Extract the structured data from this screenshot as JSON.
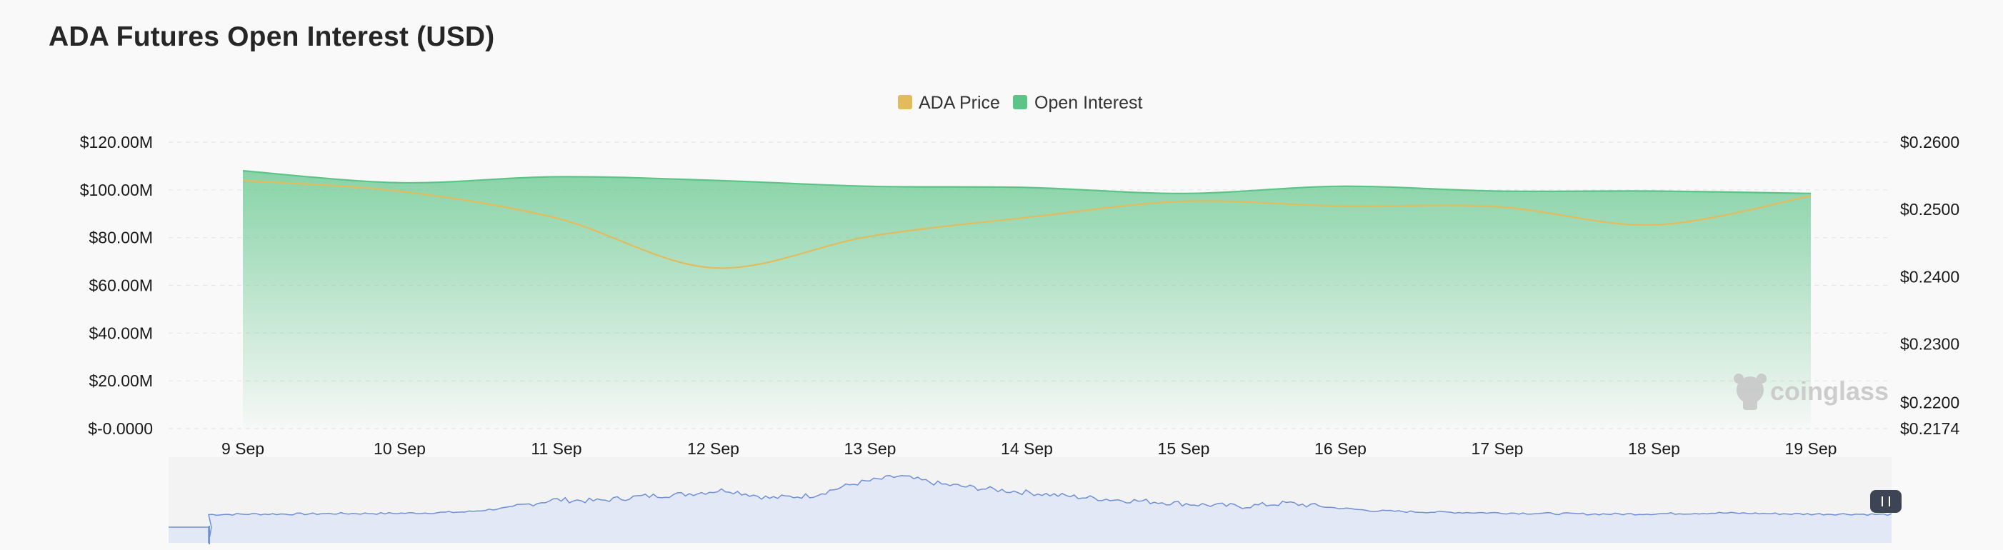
{
  "title": "ADA Futures Open Interest (USD)",
  "watermark": "coinglass",
  "colors": {
    "price": "#e2bc5c",
    "open_interest": "#5cc487",
    "navigator_fill": "#e3e8f7",
    "navigator_line": "#6f8fd6"
  },
  "chart_data": {
    "type": "area",
    "title": "ADA Futures Open Interest (USD)",
    "legend_position": "top-center",
    "grid": true,
    "x": [
      "9 Sep",
      "10 Sep",
      "11 Sep",
      "12 Sep",
      "13 Sep",
      "14 Sep",
      "15 Sep",
      "16 Sep",
      "17 Sep",
      "18 Sep",
      "19 Sep"
    ],
    "y_left": {
      "tick_labels": [
        "$-0.0000",
        "$20.00M",
        "$40.00M",
        "$60.00M",
        "$80.00M",
        "$100.00M",
        "$120.00M"
      ],
      "tick_values": [
        0,
        20,
        40,
        60,
        80,
        100,
        120
      ],
      "range": [
        0,
        120
      ],
      "unit": "M USD"
    },
    "y_right": {
      "tick_labels": [
        "$0.2174",
        "$0.2200",
        "$0.2300",
        "$0.2400",
        "$0.2500",
        "$0.2600"
      ],
      "tick_values": [
        0.2174,
        0.22,
        0.23,
        0.24,
        0.25,
        0.26
      ],
      "range": [
        0.2174,
        0.26
      ]
    },
    "series": [
      {
        "name": "Open Interest",
        "axis": "left",
        "type": "area",
        "values": [
          108,
          103,
          105.5,
          104,
          101.5,
          101,
          98.5,
          101.5,
          99.5,
          99.5,
          98.5
        ]
      },
      {
        "name": "ADA Price",
        "axis": "right",
        "type": "line",
        "values": [
          0.2543,
          0.2527,
          0.2487,
          0.2413,
          0.246,
          0.2488,
          0.2512,
          0.2505,
          0.2504,
          0.2477,
          0.252
        ]
      }
    ]
  }
}
